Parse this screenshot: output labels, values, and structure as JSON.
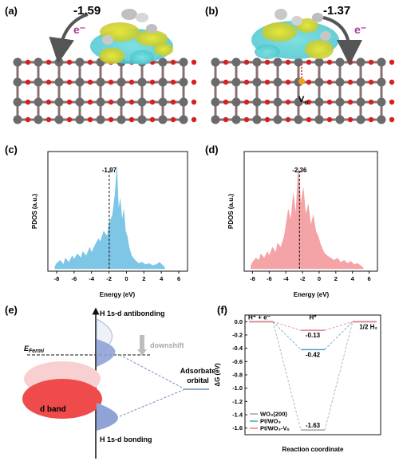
{
  "panels": {
    "a": {
      "label": "(a)",
      "value": "-1.59",
      "electron": "e⁻"
    },
    "b": {
      "label": "(b)",
      "value": "-1.37",
      "electron": "e⁻",
      "vacancy": "V",
      "vacancy_sub": "o"
    },
    "c": {
      "label": "(c)"
    },
    "d": {
      "label": "(d)"
    },
    "e": {
      "label": "(e)",
      "antibonding": "H 1s-d antibonding",
      "bonding": "H 1s-d bonding",
      "downshift": "downshift",
      "fermi": "E",
      "fermi_sub": "Fermi",
      "adsorbate": "Adsorbate",
      "orbital": "orbital",
      "dband": "d band"
    },
    "f": {
      "label": "(f)"
    }
  },
  "chart_data": [
    {
      "type": "area",
      "panel": "c",
      "xlabel": "Energy (eV)",
      "ylabel": "PDOS (a.u.)",
      "xlim": [
        -9,
        7
      ],
      "xticks": [
        "-8",
        "-6",
        "-4",
        "-2",
        "0",
        "2",
        "4",
        "6"
      ],
      "color": "#7ec6e6",
      "dband_center": -1.97,
      "annotation": "-1.97",
      "x": [
        -8.2,
        -8,
        -7.6,
        -7.2,
        -7,
        -6.6,
        -6.2,
        -6,
        -5.6,
        -5.2,
        -5,
        -4.6,
        -4.2,
        -4,
        -3.6,
        -3.2,
        -3,
        -2.6,
        -2.2,
        -2,
        -1.6,
        -1.3,
        -1.1,
        -0.9,
        -0.7,
        -0.5,
        -0.3,
        -0.1,
        0.1,
        0.3,
        0.6,
        1,
        1.4,
        1.8,
        2.2,
        2.6,
        3,
        3.4,
        3.8,
        4.2,
        4.4
      ],
      "y": [
        0.02,
        0.05,
        0.08,
        0.04,
        0.1,
        0.06,
        0.12,
        0.09,
        0.14,
        0.1,
        0.16,
        0.12,
        0.2,
        0.15,
        0.22,
        0.28,
        0.25,
        0.35,
        0.3,
        0.42,
        0.5,
        0.7,
        0.95,
        0.55,
        0.65,
        0.45,
        0.55,
        0.35,
        0.3,
        0.2,
        0.12,
        0.08,
        0.05,
        0.06,
        0.04,
        0.05,
        0.03,
        0.04,
        0.06,
        0.03,
        0.01
      ]
    },
    {
      "type": "area",
      "panel": "d",
      "xlabel": "Energy (eV)",
      "ylabel": "PDOS (a.u.)",
      "xlim": [
        -9,
        7
      ],
      "xticks": [
        "-8",
        "-6",
        "-4",
        "-2",
        "0",
        "2",
        "4",
        "6"
      ],
      "color": "#f4a3a6",
      "dband_center": -2.36,
      "annotation": "-2.36",
      "x": [
        -8.2,
        -8,
        -7.6,
        -7.2,
        -7,
        -6.6,
        -6.2,
        -6,
        -5.6,
        -5.2,
        -5,
        -4.6,
        -4.2,
        -4,
        -3.7,
        -3.4,
        -3.1,
        -2.8,
        -2.5,
        -2.2,
        -1.9,
        -1.6,
        -1.3,
        -1,
        -0.7,
        -0.4,
        -0.1,
        0.2,
        0.6,
        1,
        1.4,
        1.8,
        2.2,
        2.6,
        3,
        3.4,
        3.8,
        4.2,
        4.6,
        5,
        5.3
      ],
      "y": [
        0.03,
        0.06,
        0.1,
        0.08,
        0.14,
        0.1,
        0.16,
        0.12,
        0.2,
        0.15,
        0.24,
        0.2,
        0.3,
        0.4,
        0.55,
        0.45,
        0.7,
        0.5,
        0.95,
        0.6,
        0.75,
        0.5,
        0.6,
        0.4,
        0.5,
        0.35,
        0.3,
        0.22,
        0.15,
        0.12,
        0.1,
        0.08,
        0.1,
        0.06,
        0.08,
        0.05,
        0.07,
        0.04,
        0.05,
        0.03,
        0.01
      ]
    },
    {
      "type": "line",
      "panel": "f",
      "xlabel": "Reaction coordinate",
      "ylabel": "ΔG (eV)",
      "ylim": [
        -1.7,
        0.1
      ],
      "yticks": [
        "0.0",
        "-0.2",
        "-0.4",
        "-0.6",
        "-0.8",
        "-1.0",
        "-1.2",
        "-1.4",
        "-1.6"
      ],
      "states": [
        "H⁺ + e⁻",
        "H*",
        "1/2 H₂"
      ],
      "series": [
        {
          "name": "WO₃(200)",
          "values": [
            0,
            -1.63,
            0
          ],
          "color": "#9aa6ad",
          "label": "-1.63"
        },
        {
          "name": "Pt/WO₃",
          "values": [
            0,
            -0.42,
            0
          ],
          "color": "#4fa3c7",
          "label": "-0.42"
        },
        {
          "name": "Pt/WO₃-Vₒ",
          "values": [
            0,
            -0.13,
            0
          ],
          "color": "#e57d83",
          "label": "-0.13"
        }
      ]
    }
  ]
}
